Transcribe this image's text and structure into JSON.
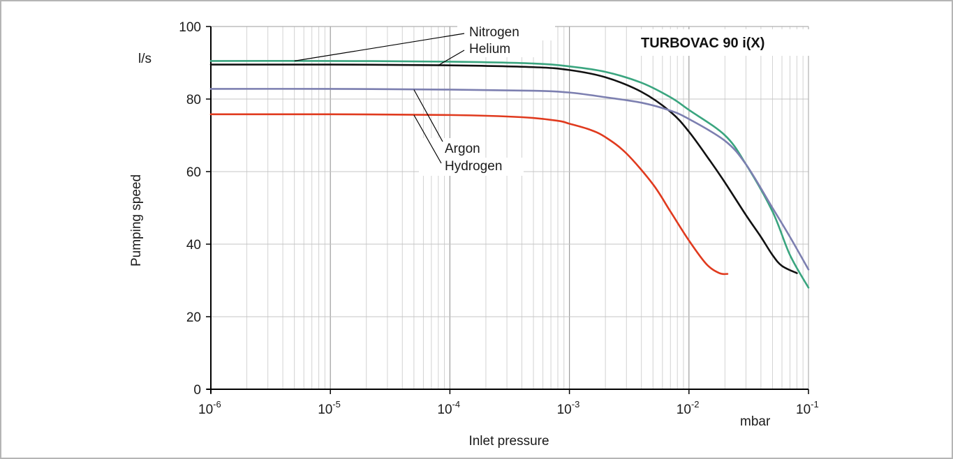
{
  "chart_data": {
    "type": "line",
    "title": "TURBOVAC 90 i(X)",
    "xlabel": "Inlet pressure",
    "x_unit": "mbar",
    "ylabel": "Pumping speed",
    "y_unit": "l/s",
    "x_scale": "log",
    "xlim": [
      1e-06,
      0.1
    ],
    "ylim": [
      0,
      100
    ],
    "x_ticks": [
      {
        "base": "10",
        "exp": "-6"
      },
      {
        "base": "10",
        "exp": "-5"
      },
      {
        "base": "10",
        "exp": "-4"
      },
      {
        "base": "10",
        "exp": "-3"
      },
      {
        "base": "10",
        "exp": "-2"
      },
      {
        "base": "10",
        "exp": "-1"
      }
    ],
    "y_ticks": [
      "0",
      "20",
      "40",
      "60",
      "80",
      "100"
    ],
    "grid": true,
    "series": [
      {
        "name": "Nitrogen",
        "color": "#3aa57f",
        "points": [
          [
            1e-06,
            90.5
          ],
          [
            1e-05,
            90.5
          ],
          [
            0.0001,
            90.3
          ],
          [
            0.0005,
            89.8
          ],
          [
            0.001,
            89
          ],
          [
            0.002,
            87.5
          ],
          [
            0.004,
            84.5
          ],
          [
            0.007,
            80.5
          ],
          [
            0.01,
            77
          ],
          [
            0.02,
            70
          ],
          [
            0.03,
            62
          ],
          [
            0.05,
            49
          ],
          [
            0.07,
            37
          ],
          [
            0.1,
            28
          ]
        ]
      },
      {
        "name": "Helium",
        "color": "#111111",
        "points": [
          [
            1e-06,
            89.5
          ],
          [
            1e-05,
            89.5
          ],
          [
            0.0001,
            89.3
          ],
          [
            0.0005,
            88.8
          ],
          [
            0.001,
            88
          ],
          [
            0.002,
            86
          ],
          [
            0.004,
            82
          ],
          [
            0.007,
            76.5
          ],
          [
            0.01,
            71
          ],
          [
            0.015,
            63
          ],
          [
            0.02,
            57
          ],
          [
            0.03,
            48
          ],
          [
            0.04,
            42
          ],
          [
            0.05,
            37
          ],
          [
            0.06,
            34
          ],
          [
            0.08,
            32
          ]
        ]
      },
      {
        "name": "Argon",
        "color": "#7c7fb0",
        "points": [
          [
            1e-06,
            82.8
          ],
          [
            1e-05,
            82.8
          ],
          [
            0.0001,
            82.6
          ],
          [
            0.0005,
            82.3
          ],
          [
            0.001,
            81.8
          ],
          [
            0.002,
            80.5
          ],
          [
            0.004,
            79
          ],
          [
            0.007,
            76.8
          ],
          [
            0.01,
            74.5
          ],
          [
            0.02,
            68.5
          ],
          [
            0.03,
            62
          ],
          [
            0.05,
            50
          ],
          [
            0.07,
            42
          ],
          [
            0.1,
            33
          ]
        ]
      },
      {
        "name": "Hydrogen",
        "color": "#e03a1e",
        "points": [
          [
            1e-06,
            75.8
          ],
          [
            1e-05,
            75.8
          ],
          [
            0.0001,
            75.6
          ],
          [
            0.0004,
            75
          ],
          [
            0.0008,
            74
          ],
          [
            0.001,
            73.2
          ],
          [
            0.0015,
            71.5
          ],
          [
            0.002,
            69.5
          ],
          [
            0.003,
            65
          ],
          [
            0.005,
            56.5
          ],
          [
            0.007,
            49
          ],
          [
            0.01,
            41
          ],
          [
            0.014,
            34.5
          ],
          [
            0.018,
            32
          ],
          [
            0.021,
            31.8
          ]
        ]
      }
    ],
    "annotations": [
      {
        "text": "Nitrogen",
        "series": "Nitrogen"
      },
      {
        "text": "Helium",
        "series": "Helium"
      },
      {
        "text": "Argon",
        "series": "Argon"
      },
      {
        "text": "Hydrogen",
        "series": "Hydrogen"
      }
    ]
  }
}
